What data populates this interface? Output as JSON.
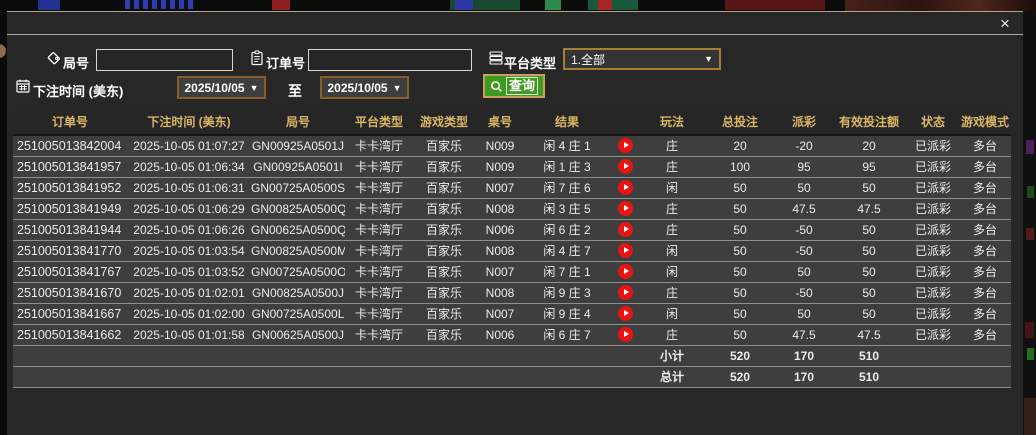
{
  "titlebar": {
    "close": "×"
  },
  "form": {
    "round_label": "局号",
    "round_value": "",
    "order_label": "订单号",
    "order_value": "",
    "platform_label": "平台类型",
    "platform_value": "1.全部",
    "arrow": "▼",
    "time_label": "下注时间 (美东)",
    "date_from": "2025/10/05",
    "to_label": "至",
    "date_to": "2025/10/05",
    "query_label": "查询"
  },
  "table": {
    "headers": [
      "订单号",
      "下注时间 (美东)",
      "局号",
      "平台类型",
      "游戏类型",
      "桌号",
      "结果",
      "",
      "玩法",
      "总投注",
      "派彩",
      "有效投注额",
      "状态",
      "游戏模式"
    ],
    "rows": [
      {
        "order": "251005013842004",
        "time": "2025-10-05 01:07:27",
        "round": "GN00925A0501J",
        "platform": "卡卡湾厅",
        "game": "百家乐",
        "table": "N009",
        "result": "闲 4 庄 1",
        "bet": "庄",
        "total": "20",
        "payout": "-20",
        "valid": "20",
        "status": "已派彩",
        "mode": "多台"
      },
      {
        "order": "251005013841957",
        "time": "2025-10-05 01:06:34",
        "round": "GN00925A0501I",
        "platform": "卡卡湾厅",
        "game": "百家乐",
        "table": "N009",
        "result": "闲 1 庄 3",
        "bet": "庄",
        "total": "100",
        "payout": "95",
        "valid": "95",
        "status": "已派彩",
        "mode": "多台"
      },
      {
        "order": "251005013841952",
        "time": "2025-10-05 01:06:31",
        "round": "GN00725A0500S",
        "platform": "卡卡湾厅",
        "game": "百家乐",
        "table": "N007",
        "result": "闲 7 庄 6",
        "bet": "闲",
        "total": "50",
        "payout": "50",
        "valid": "50",
        "status": "已派彩",
        "mode": "多台"
      },
      {
        "order": "251005013841949",
        "time": "2025-10-05 01:06:29",
        "round": "GN00825A0500Q",
        "platform": "卡卡湾厅",
        "game": "百家乐",
        "table": "N008",
        "result": "闲 3 庄 5",
        "bet": "庄",
        "total": "50",
        "payout": "47.5",
        "valid": "47.5",
        "status": "已派彩",
        "mode": "多台"
      },
      {
        "order": "251005013841944",
        "time": "2025-10-05 01:06:26",
        "round": "GN00625A0500Q",
        "platform": "卡卡湾厅",
        "game": "百家乐",
        "table": "N006",
        "result": "闲 6 庄 2",
        "bet": "庄",
        "total": "50",
        "payout": "-50",
        "valid": "50",
        "status": "已派彩",
        "mode": "多台"
      },
      {
        "order": "251005013841770",
        "time": "2025-10-05 01:03:54",
        "round": "GN00825A0500M",
        "platform": "卡卡湾厅",
        "game": "百家乐",
        "table": "N008",
        "result": "闲 4 庄 7",
        "bet": "闲",
        "total": "50",
        "payout": "-50",
        "valid": "50",
        "status": "已派彩",
        "mode": "多台"
      },
      {
        "order": "251005013841767",
        "time": "2025-10-05 01:03:52",
        "round": "GN00725A0500O",
        "platform": "卡卡湾厅",
        "game": "百家乐",
        "table": "N007",
        "result": "闲 7 庄 1",
        "bet": "闲",
        "total": "50",
        "payout": "50",
        "valid": "50",
        "status": "已派彩",
        "mode": "多台"
      },
      {
        "order": "251005013841670",
        "time": "2025-10-05 01:02:01",
        "round": "GN00825A0500J",
        "platform": "卡卡湾厅",
        "game": "百家乐",
        "table": "N008",
        "result": "闲 9 庄 3",
        "bet": "庄",
        "total": "50",
        "payout": "-50",
        "valid": "50",
        "status": "已派彩",
        "mode": "多台"
      },
      {
        "order": "251005013841667",
        "time": "2025-10-05 01:02:00",
        "round": "GN00725A0500L",
        "platform": "卡卡湾厅",
        "game": "百家乐",
        "table": "N007",
        "result": "闲 9 庄 4",
        "bet": "闲",
        "total": "50",
        "payout": "50",
        "valid": "50",
        "status": "已派彩",
        "mode": "多台"
      },
      {
        "order": "251005013841662",
        "time": "2025-10-05 01:01:58",
        "round": "GN00625A0500J",
        "platform": "卡卡湾厅",
        "game": "百家乐",
        "table": "N006",
        "result": "闲 6 庄 7",
        "bet": "庄",
        "total": "50",
        "payout": "47.5",
        "valid": "47.5",
        "status": "已派彩",
        "mode": "多台"
      }
    ],
    "subtotal": {
      "label": "小计",
      "total": "520",
      "payout": "170",
      "valid": "510"
    },
    "grand_total": {
      "label": "总计",
      "total": "520",
      "payout": "170",
      "valid": "510"
    }
  },
  "colors": {
    "header_gold": "#d9b566",
    "positive_red": "#cf3535",
    "negative_green": "#2ee02e",
    "status_green": "#28d228",
    "summary_yellow": "#e8e832",
    "query_green": "#3f9a1f"
  }
}
